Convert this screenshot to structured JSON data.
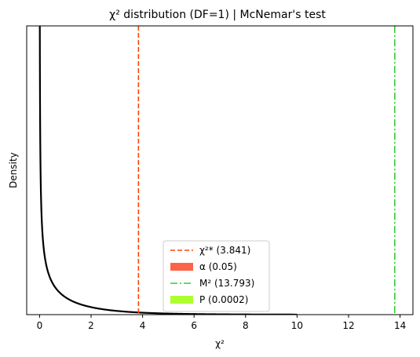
{
  "chart_data": {
    "type": "line",
    "title": "χ² distribution (DF=1) | McNemar's test",
    "xlabel": "χ²",
    "ylabel": "Density",
    "xlim": [
      -0.5,
      14.5
    ],
    "ylim": [
      0,
      4.0
    ],
    "x_ticks": [
      0,
      2,
      4,
      6,
      8,
      10,
      12,
      14
    ],
    "y_ticks_shown": false,
    "grid": false,
    "legend_position": "bottom-center",
    "df": 1,
    "curve": {
      "name": "",
      "x_range": [
        0,
        10
      ],
      "color": "#000000"
    },
    "lines": [
      {
        "x": 3.841,
        "style": "dashed",
        "color": "#ff4500"
      },
      {
        "x": 13.793,
        "style": "dash-dot",
        "color": "#32cd32"
      }
    ],
    "legend": [
      {
        "label": "χ²* (3.841)",
        "kind": "line",
        "style": "dashed",
        "color": "#ff4500"
      },
      {
        "label": "α (0.05)",
        "kind": "patch",
        "color": "#ff6347"
      },
      {
        "label": "M² (13.793)",
        "kind": "line",
        "style": "dash-dot",
        "color": "#32cd32"
      },
      {
        "label": "P (0.0002)",
        "kind": "patch",
        "color": "#adff2f"
      }
    ]
  }
}
